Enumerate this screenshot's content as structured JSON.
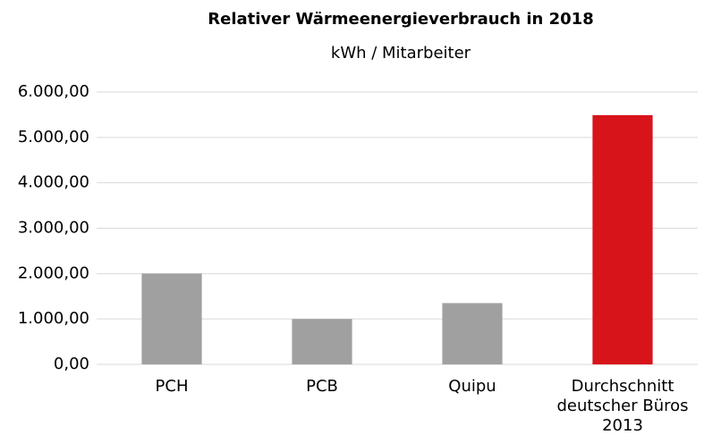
{
  "chart_data": {
    "type": "bar",
    "title": "Relativer Wärmeenergieverbrauch in 2018",
    "subtitle": "kWh / Mitarbeiter",
    "categories": [
      "PCH",
      "PCB",
      "Quipu",
      "Durchschnitt deutscher Büros 2013"
    ],
    "values": [
      2000,
      1000,
      1350,
      5490
    ],
    "colors": [
      "#a0a0a0",
      "#a0a0a0",
      "#a0a0a0",
      "#d7141a"
    ],
    "ylim": [
      0,
      6000
    ],
    "yticks": [
      {
        "value": 0,
        "label": "0,00"
      },
      {
        "value": 1000,
        "label": "1.000,00"
      },
      {
        "value": 2000,
        "label": "2.000,00"
      },
      {
        "value": 3000,
        "label": "3.000,00"
      },
      {
        "value": 4000,
        "label": "4.000,00"
      },
      {
        "value": 5000,
        "label": "5.000,00"
      },
      {
        "value": 6000,
        "label": "6.000,00"
      }
    ],
    "grid": true
  }
}
